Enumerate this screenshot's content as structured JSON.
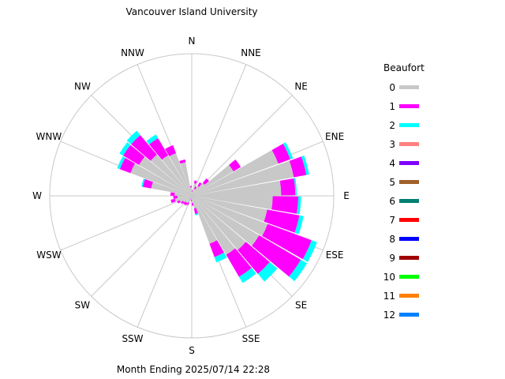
{
  "chart_data": {
    "type": "polar-area",
    "title": "Vancouver Island University",
    "footer": "Month Ending 2025/07/14 22:28",
    "legend_title": "Beaufort",
    "legend_position": "right",
    "radial_max": 10,
    "grid": true,
    "directions": [
      "N",
      "NNE",
      "NE",
      "ENE",
      "E",
      "ESE",
      "SE",
      "SSE",
      "S",
      "SSW",
      "SW",
      "WSW",
      "W",
      "WNW",
      "NW",
      "NNW"
    ],
    "beaufort_classes": [
      {
        "label": "0",
        "color": "#c8c8c8"
      },
      {
        "label": "1",
        "color": "#ff00ff"
      },
      {
        "label": "2",
        "color": "#00ffff"
      },
      {
        "label": "3",
        "color": "#ff8080"
      },
      {
        "label": "4",
        "color": "#8000ff"
      },
      {
        "label": "5",
        "color": "#a0602a"
      },
      {
        "label": "6",
        "color": "#008070"
      },
      {
        "label": "7",
        "color": "#ff0000"
      },
      {
        "label": "8",
        "color": "#0000ff"
      },
      {
        "label": "9",
        "color": "#a00000"
      },
      {
        "label": "10",
        "color": "#00ff00"
      },
      {
        "label": "11",
        "color": "#ff8000"
      },
      {
        "label": "12",
        "color": "#0080ff"
      }
    ],
    "bins": [
      {
        "from": 0,
        "to": 10,
        "segs": [
          0.3,
          0.1,
          0.0
        ]
      },
      {
        "from": 10,
        "to": 20,
        "segs": [
          0.9,
          0.2,
          0.0
        ]
      },
      {
        "from": 20,
        "to": 30,
        "segs": [
          0.5,
          0.2,
          0.0
        ]
      },
      {
        "from": 30,
        "to": 40,
        "segs": [
          0.8,
          0.3,
          0.0
        ]
      },
      {
        "from": 40,
        "to": 50,
        "segs": [
          1.2,
          0.4,
          0.0
        ]
      },
      {
        "from": 50,
        "to": 60,
        "segs": [
          3.4,
          0.6,
          0.0
        ]
      },
      {
        "from": 60,
        "to": 70,
        "segs": [
          6.5,
          0.9,
          0.2
        ]
      },
      {
        "from": 70,
        "to": 80,
        "segs": [
          7.3,
          0.9,
          0.2
        ]
      },
      {
        "from": 80,
        "to": 90,
        "segs": [
          6.3,
          1.0,
          0.1
        ]
      },
      {
        "from": 90,
        "to": 100,
        "segs": [
          5.7,
          1.8,
          0.2
        ]
      },
      {
        "from": 100,
        "to": 110,
        "segs": [
          5.4,
          2.3,
          0.3
        ]
      },
      {
        "from": 110,
        "to": 120,
        "segs": [
          5.7,
          3.3,
          0.4
        ]
      },
      {
        "from": 120,
        "to": 130,
        "segs": [
          5.5,
          3.4,
          0.5
        ]
      },
      {
        "from": 130,
        "to": 140,
        "segs": [
          5.0,
          2.2,
          0.7
        ]
      },
      {
        "from": 140,
        "to": 150,
        "segs": [
          4.8,
          1.8,
          0.5
        ]
      },
      {
        "from": 150,
        "to": 160,
        "segs": [
          3.6,
          1.0,
          0.4
        ]
      },
      {
        "from": 160,
        "to": 170,
        "segs": [
          0.9,
          0.4,
          0.1
        ]
      },
      {
        "from": 170,
        "to": 180,
        "segs": [
          0.5,
          0.2,
          0.0
        ]
      },
      {
        "from": 180,
        "to": 190,
        "segs": [
          0.3,
          0.1,
          0.0
        ]
      },
      {
        "from": 190,
        "to": 200,
        "segs": [
          0.2,
          0.1,
          0.0
        ]
      },
      {
        "from": 200,
        "to": 210,
        "segs": [
          0.5,
          0.2,
          0.0
        ]
      },
      {
        "from": 210,
        "to": 220,
        "segs": [
          0.6,
          0.2,
          0.0
        ]
      },
      {
        "from": 220,
        "to": 230,
        "segs": [
          0.6,
          0.2,
          0.0
        ]
      },
      {
        "from": 230,
        "to": 240,
        "segs": [
          0.7,
          0.2,
          0.0
        ]
      },
      {
        "from": 240,
        "to": 250,
        "segs": [
          0.9,
          0.2,
          0.0
        ]
      },
      {
        "from": 250,
        "to": 260,
        "segs": [
          1.2,
          0.3,
          0.0
        ]
      },
      {
        "from": 260,
        "to": 270,
        "segs": [
          1.0,
          0.3,
          0.0
        ]
      },
      {
        "from": 270,
        "to": 280,
        "segs": [
          1.2,
          0.3,
          0.0
        ]
      },
      {
        "from": 280,
        "to": 290,
        "segs": [
          2.9,
          0.6,
          0.1
        ]
      },
      {
        "from": 290,
        "to": 300,
        "segs": [
          4.6,
          0.8,
          0.2
        ]
      },
      {
        "from": 300,
        "to": 310,
        "segs": [
          4.3,
          1.3,
          0.3
        ]
      },
      {
        "from": 310,
        "to": 320,
        "segs": [
          3.8,
          1.8,
          0.4
        ]
      },
      {
        "from": 320,
        "to": 330,
        "segs": [
          3.3,
          1.4,
          0.3
        ]
      },
      {
        "from": 330,
        "to": 340,
        "segs": [
          3.2,
          0.6,
          0.0
        ]
      },
      {
        "from": 340,
        "to": 350,
        "segs": [
          2.4,
          0.2,
          0.0
        ]
      },
      {
        "from": 350,
        "to": 360,
        "segs": [
          0.6,
          0.1,
          0.0
        ]
      }
    ]
  }
}
